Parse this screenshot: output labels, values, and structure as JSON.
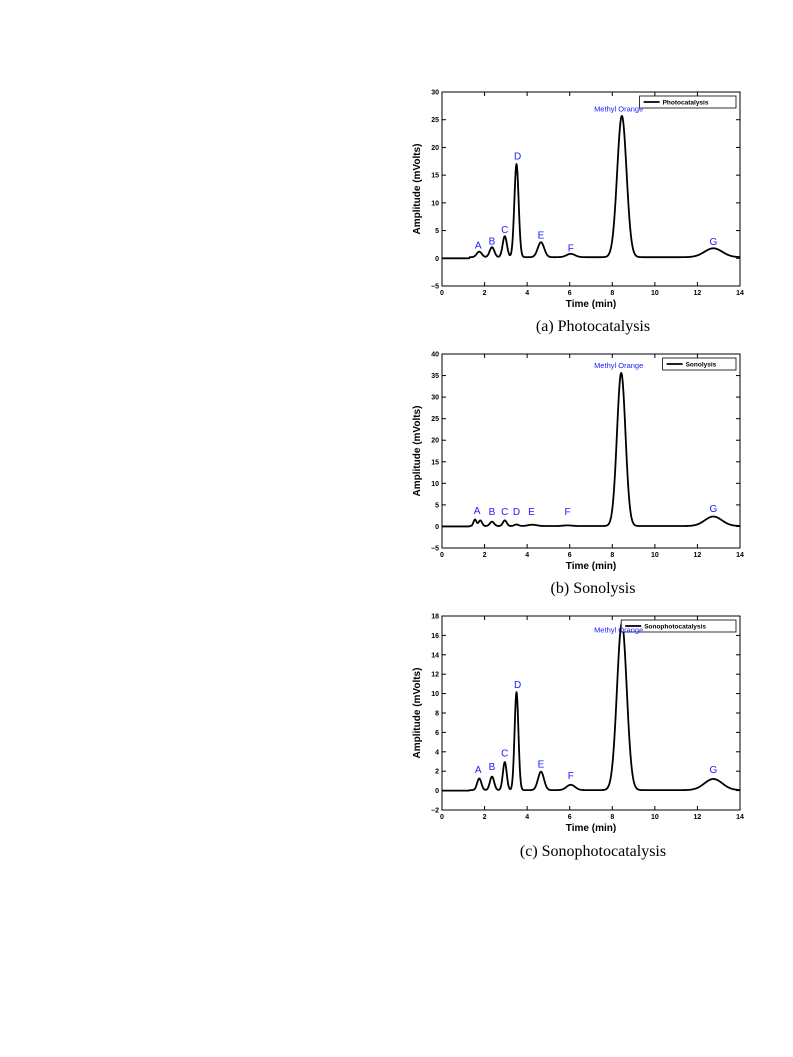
{
  "chart_data": [
    {
      "type": "line",
      "caption": "(a) Photocatalysis",
      "xlabel": "Time (min)",
      "ylabel": "Amplitude (mVolts)",
      "xlim": [
        0,
        14
      ],
      "ylim": [
        -5,
        30
      ],
      "xticks": [
        0,
        2,
        4,
        6,
        8,
        10,
        12,
        14
      ],
      "yticks": [
        -5,
        0,
        5,
        10,
        15,
        20,
        25,
        30
      ],
      "legend": "top-right",
      "series": [
        {
          "name": "Photocatalysis",
          "baseline": 0.2,
          "peaks": [
            {
              "label": "A",
              "x": 1.75,
              "height": 1.0,
              "width": 0.12
            },
            {
              "label": "B",
              "x": 2.35,
              "height": 1.8,
              "width": 0.11
            },
            {
              "label": "C",
              "x": 2.95,
              "height": 3.8,
              "width": 0.1
            },
            {
              "label": "D",
              "x": 3.5,
              "height": 16.8,
              "width": 0.1
            },
            {
              "label": "E",
              "x": 4.65,
              "height": 2.7,
              "width": 0.15
            },
            {
              "label": "F",
              "x": 6.05,
              "height": 0.6,
              "width": 0.2
            },
            {
              "label": "Methyl Orange",
              "x": 8.45,
              "height": 25.5,
              "width": 0.22
            },
            {
              "label": "G",
              "x": 12.75,
              "height": 1.6,
              "width": 0.42
            }
          ]
        }
      ],
      "annotations": [
        {
          "text": "A",
          "x": 1.7,
          "y": 1.8
        },
        {
          "text": "B",
          "x": 2.35,
          "y": 2.5
        },
        {
          "text": "C",
          "x": 2.95,
          "y": 4.6
        },
        {
          "text": "D",
          "x": 3.55,
          "y": 17.8
        },
        {
          "text": "E",
          "x": 4.65,
          "y": 3.6
        },
        {
          "text": "F",
          "x": 6.05,
          "y": 1.2
        },
        {
          "text": "Methyl Orange",
          "x": 8.3,
          "y": 26.5
        },
        {
          "text": "G",
          "x": 12.75,
          "y": 2.4
        }
      ]
    },
    {
      "type": "line",
      "caption": "(b) Sonolysis",
      "xlabel": "Time (min)",
      "ylabel": "Amplitude (mVolts)",
      "xlim": [
        0,
        14
      ],
      "ylim": [
        -5,
        40
      ],
      "xticks": [
        0,
        2,
        4,
        6,
        8,
        10,
        12,
        14
      ],
      "yticks": [
        -5,
        0,
        5,
        10,
        15,
        20,
        25,
        30,
        35,
        40
      ],
      "legend": "top-right",
      "series": [
        {
          "name": "Sonolysis",
          "baseline": 0.1,
          "peaks": [
            {
              "label": "A",
              "x": 1.55,
              "height": 1.5,
              "width": 0.07
            },
            {
              "label": "A2",
              "x": 1.8,
              "height": 1.3,
              "width": 0.08
            },
            {
              "label": "B",
              "x": 2.35,
              "height": 1.0,
              "width": 0.1
            },
            {
              "label": "C",
              "x": 2.95,
              "height": 1.3,
              "width": 0.09
            },
            {
              "label": "D",
              "x": 3.5,
              "height": 0.35,
              "width": 0.1
            },
            {
              "label": "E",
              "x": 4.25,
              "height": 0.3,
              "width": 0.2
            },
            {
              "label": "F",
              "x": 5.9,
              "height": 0.15,
              "width": 0.2
            },
            {
              "label": "Methyl Orange",
              "x": 8.42,
              "height": 35.5,
              "width": 0.2
            },
            {
              "label": "G",
              "x": 12.75,
              "height": 2.2,
              "width": 0.4
            }
          ]
        }
      ],
      "annotations": [
        {
          "text": "A",
          "x": 1.65,
          "y": 2.9
        },
        {
          "text": "B",
          "x": 2.35,
          "y": 2.7
        },
        {
          "text": "C",
          "x": 2.95,
          "y": 2.7
        },
        {
          "text": "D",
          "x": 3.5,
          "y": 2.7
        },
        {
          "text": "E",
          "x": 4.2,
          "y": 2.7
        },
        {
          "text": "F",
          "x": 5.9,
          "y": 2.7
        },
        {
          "text": "Methyl Orange",
          "x": 8.3,
          "y": 36.7
        },
        {
          "text": "G",
          "x": 12.75,
          "y": 3.4
        }
      ]
    },
    {
      "type": "line",
      "caption": "(c) Sonophotocatalysis",
      "xlabel": "Time (min)",
      "ylabel": "Amplitude (mVolts)",
      "xlim": [
        0,
        14
      ],
      "ylim": [
        -2,
        18
      ],
      "xticks": [
        0,
        2,
        4,
        6,
        8,
        10,
        12,
        14
      ],
      "yticks": [
        -2,
        0,
        2,
        4,
        6,
        8,
        10,
        12,
        14,
        16,
        18
      ],
      "legend": "top-right",
      "series": [
        {
          "name": "Sonophotocatalysis",
          "baseline": 0.05,
          "peaks": [
            {
              "label": "A",
              "x": 1.75,
              "height": 1.2,
              "width": 0.1
            },
            {
              "label": "B",
              "x": 2.35,
              "height": 1.4,
              "width": 0.1
            },
            {
              "label": "C",
              "x": 2.95,
              "height": 2.9,
              "width": 0.09
            },
            {
              "label": "D",
              "x": 3.5,
              "height": 10.1,
              "width": 0.09
            },
            {
              "label": "E",
              "x": 4.65,
              "height": 1.9,
              "width": 0.14
            },
            {
              "label": "F",
              "x": 6.05,
              "height": 0.55,
              "width": 0.2
            },
            {
              "label": "Methyl Orange",
              "x": 8.45,
              "height": 17.2,
              "width": 0.23
            },
            {
              "label": "G",
              "x": 12.75,
              "height": 1.15,
              "width": 0.42
            }
          ]
        }
      ],
      "annotations": [
        {
          "text": "A",
          "x": 1.7,
          "y": 1.8
        },
        {
          "text": "B",
          "x": 2.35,
          "y": 2.1
        },
        {
          "text": "C",
          "x": 2.95,
          "y": 3.5
        },
        {
          "text": "D",
          "x": 3.55,
          "y": 10.6
        },
        {
          "text": "E",
          "x": 4.65,
          "y": 2.4
        },
        {
          "text": "F",
          "x": 6.05,
          "y": 1.2
        },
        {
          "text": "Methyl Orange",
          "x": 8.3,
          "y": 16.3
        },
        {
          "text": "G",
          "x": 12.75,
          "y": 1.8
        }
      ]
    }
  ],
  "colors": {
    "line": "#000000",
    "annotation": "#1a1aff",
    "axis": "#000000"
  }
}
